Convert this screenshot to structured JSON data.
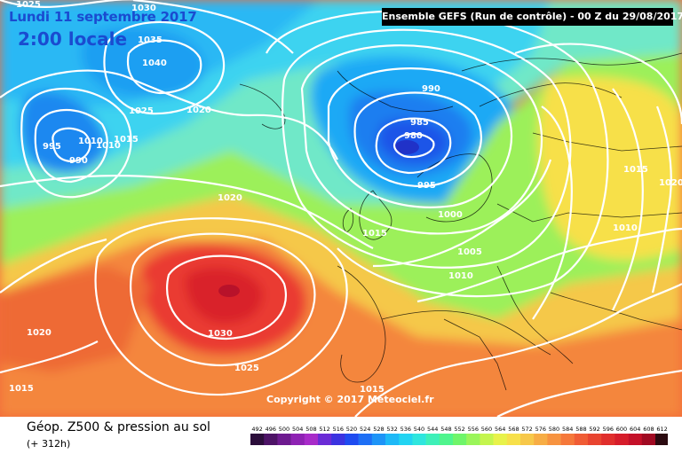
{
  "header": {
    "date_line": "Lundi 11 septembre 2017",
    "time_line": "2:00 locale",
    "run_info": "Ensemble GEFS  (Run de contrôle)  -  00 Z du 29/08/2017"
  },
  "footer": {
    "copyright": "Copyright © 2017 Meteociel.fr",
    "legend_title": "Géop. Z500 & pression au sol",
    "legend_sub": "(+ 312h)"
  },
  "pressure_labels": [
    "1025",
    "1030",
    "1035",
    "1040",
    "1025",
    "1020",
    "995",
    "990",
    "1010",
    "1010",
    "1015",
    "990",
    "985",
    "980",
    "995",
    "1000",
    "1020",
    "1015",
    "1005",
    "1010",
    "1015",
    "1020",
    "1010",
    "1020",
    "1030",
    "1025",
    "1015",
    "1015"
  ],
  "scale": {
    "values": [
      "492",
      "496",
      "500",
      "504",
      "508",
      "512",
      "516",
      "520",
      "524",
      "528",
      "532",
      "536",
      "540",
      "544",
      "548",
      "552",
      "556",
      "560",
      "564",
      "568",
      "572",
      "576",
      "580",
      "584",
      "588",
      "592",
      "596",
      "600",
      "604",
      "608",
      "612"
    ],
    "colors": [
      "#2b0d3a",
      "#4d1366",
      "#6d1a8f",
      "#8e22b3",
      "#a82bc9",
      "#6a2bd6",
      "#3b33e0",
      "#1e4bf0",
      "#1e6ff5",
      "#1e94f7",
      "#1eb9f7",
      "#22d4f2",
      "#2fe6de",
      "#3ef0b8",
      "#4ff58d",
      "#6ff56a",
      "#9af55a",
      "#c4f54e",
      "#e8f24a",
      "#f7e04a",
      "#f7c84a",
      "#f7ad45",
      "#f79340",
      "#f5783a",
      "#f05c35",
      "#e84430",
      "#e02e2c",
      "#d61c2a",
      "#c41028",
      "#a00a22",
      "#2b0a10"
    ]
  },
  "colors": {
    "title_blue": "#1a4bd0"
  }
}
